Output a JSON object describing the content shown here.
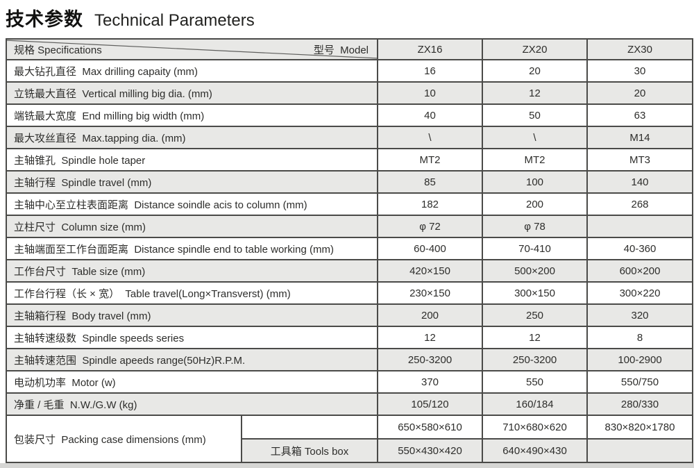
{
  "title": {
    "zh": "技术参数",
    "en": "Technical Parameters"
  },
  "colors": {
    "row_alt_gray": "#e8e8e6",
    "row_white": "#ffffff",
    "border": "#4a4a48",
    "text": "#2d2d2b",
    "bottom_strip": "#d6d6d4"
  },
  "table": {
    "header": {
      "spec_label": "规格 Specifications",
      "model_label": "型号  Model",
      "models": [
        "ZX16",
        "ZX20",
        "ZX30"
      ]
    },
    "rows": [
      {
        "label": "最大钻孔直径  Max drilling capaity (mm)",
        "values": [
          "16",
          "20",
          "30"
        ]
      },
      {
        "label": "立铣最大直径  Vertical milling big dia. (mm)",
        "values": [
          "10",
          "12",
          "20"
        ]
      },
      {
        "label": "端铣最大宽度  End milling big width (mm)",
        "values": [
          "40",
          "50",
          "63"
        ]
      },
      {
        "label": "最大攻丝直径  Max.tapping dia. (mm)",
        "values": [
          "\\",
          "\\",
          "M14"
        ]
      },
      {
        "label": "主轴锥孔  Spindle hole taper",
        "values": [
          "MT2",
          "MT2",
          "MT3"
        ]
      },
      {
        "label": "主轴行程  Spindle travel (mm)",
        "values": [
          "85",
          "100",
          "140"
        ]
      },
      {
        "label": "主轴中心至立柱表面距离  Distance soindle acis to column (mm)",
        "values": [
          "182",
          "200",
          "268"
        ]
      },
      {
        "label": "立柱尺寸  Column size (mm)",
        "values": [
          "φ 72",
          "φ 78",
          ""
        ]
      },
      {
        "label": "主轴端面至工作台面距离  Distance spindle end to table working (mm)",
        "values": [
          "60-400",
          "70-410",
          "40-360"
        ]
      },
      {
        "label": "工作台尺寸  Table size (mm)",
        "values": [
          "420×150",
          "500×200",
          "600×200"
        ]
      },
      {
        "label": "工作台行程（长 × 宽）  Table travel(Long×Transverst) (mm)",
        "values": [
          "230×150",
          "300×150",
          "300×220"
        ]
      },
      {
        "label": "主轴箱行程  Body travel (mm)",
        "values": [
          "200",
          "250",
          "320"
        ]
      },
      {
        "label": "主轴转速级数  Spindle speeds series",
        "values": [
          "12",
          "12",
          "8"
        ]
      },
      {
        "label": "主轴转速范围  Spindle apeeds range(50Hz)R.P.M.",
        "values": [
          "250-3200",
          "250-3200",
          "100-2900"
        ]
      },
      {
        "label": "电动机功率  Motor (w)",
        "values": [
          "370",
          "550",
          "550/750"
        ]
      },
      {
        "label": "净重 / 毛重  N.W./G.W (kg)",
        "values": [
          "105/120",
          "160/184",
          "280/330"
        ]
      }
    ],
    "packing": {
      "label": "包装尺寸  Packing case dimensions (mm)",
      "rows": [
        {
          "sub": "",
          "values": [
            "650×580×610",
            "710×680×620",
            "830×820×1780"
          ]
        },
        {
          "sub": "工具箱 Tools box",
          "values": [
            "550×430×420",
            "640×490×430",
            ""
          ]
        }
      ]
    }
  }
}
